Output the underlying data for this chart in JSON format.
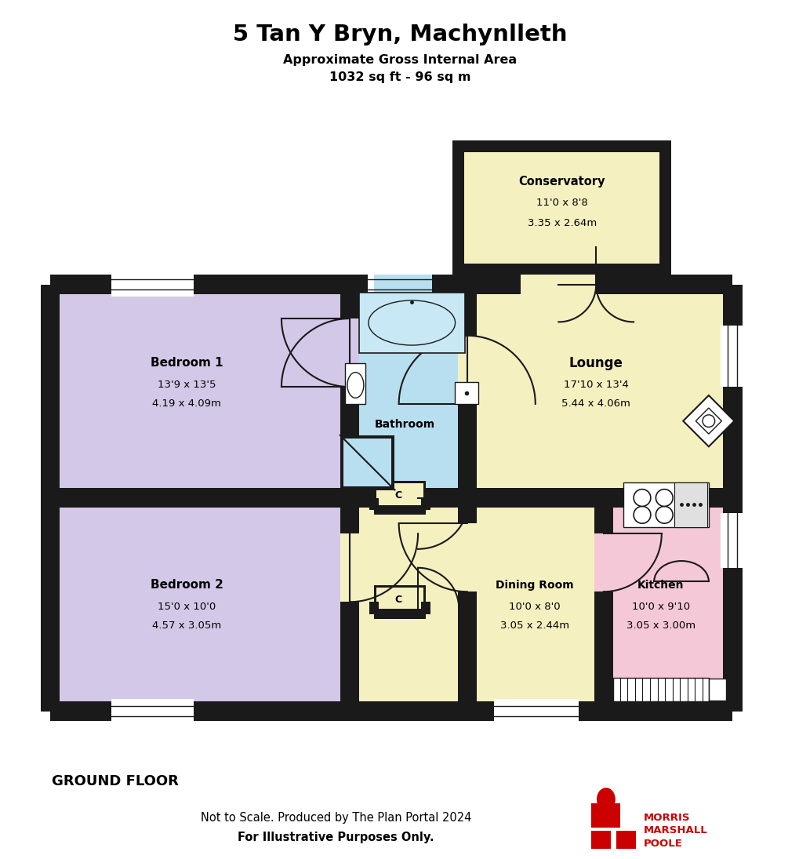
{
  "title": "5 Tan Y Bryn, Machynlleth",
  "subtitle1": "Approximate Gross Internal Area",
  "subtitle2": "1032 sq ft - 96 sq m",
  "footer1": "Not to Scale. Produced by The Plan Portal 2024",
  "footer2": "For Illustrative Purposes Only.",
  "ground_floor_label": "GROUND FLOOR",
  "bg_color": "#ffffff",
  "wall_color": "#1a1a1a",
  "bedroom_color": "#d4c8e8",
  "bathroom_color": "#b8dff0",
  "yellow_color": "#f5f0c0",
  "kitchen_color": "#f5c8d8",
  "conservatory_color": "#f5f0c0"
}
